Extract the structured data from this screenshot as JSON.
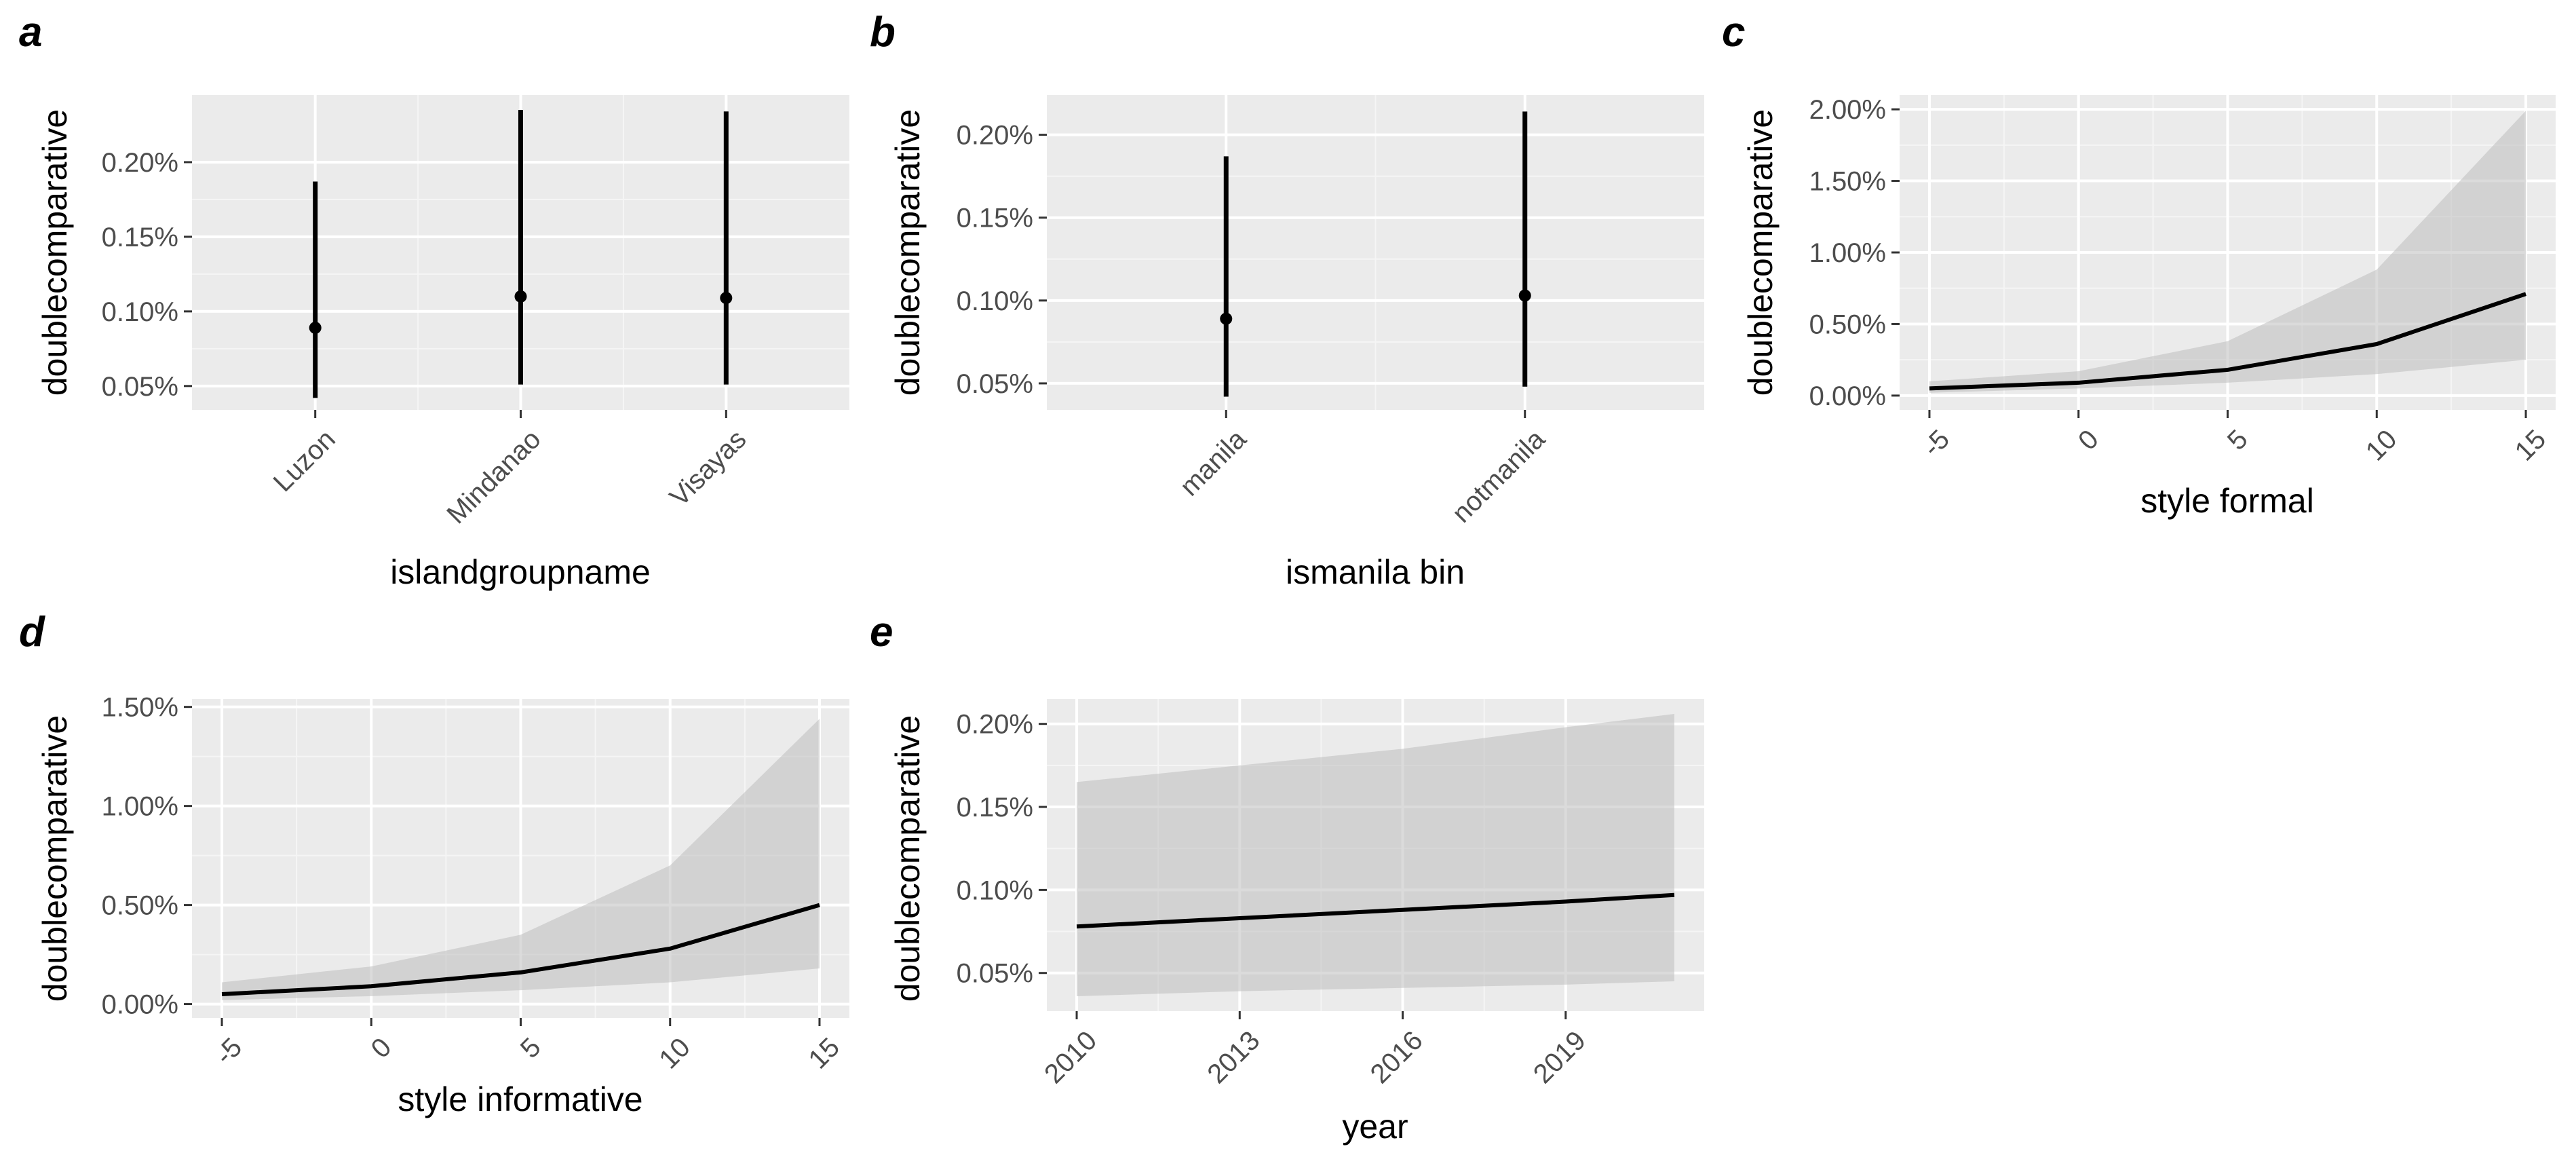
{
  "colors": {
    "panel_background": "#ebebeb",
    "grid_major": "#ffffff",
    "grid_minor": "#f5f5f5",
    "ribbon": "#bdbdbd",
    "line": "#000000",
    "tick_text": "#4d4d4d"
  },
  "chart_data": [
    {
      "panel": "a",
      "type": "pointrange",
      "xlabel": "islandgroupname",
      "ylabel": "doublecomparative",
      "categories": [
        "Luzon",
        "Mindanao",
        "Visayas"
      ],
      "values": [
        0.089,
        0.11,
        0.109
      ],
      "lower": [
        0.042,
        0.051,
        0.051
      ],
      "upper": [
        0.187,
        0.235,
        0.234
      ],
      "ylim": [
        0.034,
        0.245
      ],
      "yticks": [
        0.05,
        0.1,
        0.15,
        0.2
      ],
      "ytick_labels": [
        "0.05%",
        "0.10%",
        "0.15%",
        "0.20%"
      ]
    },
    {
      "panel": "b",
      "type": "pointrange",
      "xlabel": "ismanila bin",
      "ylabel": "doublecomparative",
      "categories": [
        "manila",
        "notmanila"
      ],
      "values": [
        0.089,
        0.103
      ],
      "lower": [
        0.042,
        0.048
      ],
      "upper": [
        0.187,
        0.214
      ],
      "ylim": [
        0.034,
        0.224
      ],
      "yticks": [
        0.05,
        0.1,
        0.15,
        0.2
      ],
      "ytick_labels": [
        "0.05%",
        "0.10%",
        "0.15%",
        "0.20%"
      ]
    },
    {
      "panel": "c",
      "type": "line",
      "xlabel": "style formal",
      "ylabel": "doublecomparative",
      "x": [
        -5,
        0,
        5,
        10,
        15
      ],
      "y": [
        0.05,
        0.09,
        0.18,
        0.36,
        0.71
      ],
      "lower": [
        0.02,
        0.05,
        0.09,
        0.15,
        0.25
      ],
      "upper": [
        0.1,
        0.17,
        0.38,
        0.88,
        1.99
      ],
      "xlim": [
        -6,
        16
      ],
      "ylim": [
        -0.1,
        2.1
      ],
      "xticks": [
        -5,
        0,
        5,
        10,
        15
      ],
      "xtick_labels": [
        "-5",
        "0",
        "5",
        "10",
        "15"
      ],
      "yticks": [
        0.0,
        0.5,
        1.0,
        1.5,
        2.0
      ],
      "ytick_labels": [
        "0.00%",
        "0.50%",
        "1.00%",
        "1.50%",
        "2.00%"
      ]
    },
    {
      "panel": "d",
      "type": "line",
      "xlabel": "style informative",
      "ylabel": "doublecomparative",
      "x": [
        -5,
        0,
        5,
        10,
        15
      ],
      "y": [
        0.05,
        0.09,
        0.16,
        0.28,
        0.5
      ],
      "lower": [
        0.02,
        0.04,
        0.07,
        0.11,
        0.18
      ],
      "upper": [
        0.11,
        0.19,
        0.35,
        0.7,
        1.44
      ],
      "xlim": [
        -6,
        16
      ],
      "ylim": [
        -0.07,
        1.54
      ],
      "xticks": [
        -5,
        0,
        5,
        10,
        15
      ],
      "xtick_labels": [
        "-5",
        "0",
        "5",
        "10",
        "15"
      ],
      "yticks": [
        0.0,
        0.5,
        1.0,
        1.5
      ],
      "ytick_labels": [
        "0.00%",
        "0.50%",
        "1.00%",
        "1.50%"
      ]
    },
    {
      "panel": "e",
      "type": "line",
      "xlabel": "year",
      "ylabel": "doublecomparative",
      "x": [
        2010,
        2013,
        2016,
        2019,
        2021
      ],
      "y": [
        0.078,
        0.083,
        0.088,
        0.093,
        0.097
      ],
      "lower": [
        0.036,
        0.039,
        0.041,
        0.043,
        0.045
      ],
      "upper": [
        0.165,
        0.175,
        0.185,
        0.198,
        0.206
      ],
      "xlim": [
        2009.45,
        2021.55
      ],
      "ylim": [
        0.027,
        0.215
      ],
      "xticks": [
        2010,
        2013,
        2016,
        2019
      ],
      "xtick_labels": [
        "2010",
        "2013",
        "2016",
        "2019"
      ],
      "yticks": [
        0.05,
        0.1,
        0.15,
        0.2
      ],
      "ytick_labels": [
        "0.05%",
        "0.10%",
        "0.15%",
        "0.20%"
      ]
    }
  ]
}
